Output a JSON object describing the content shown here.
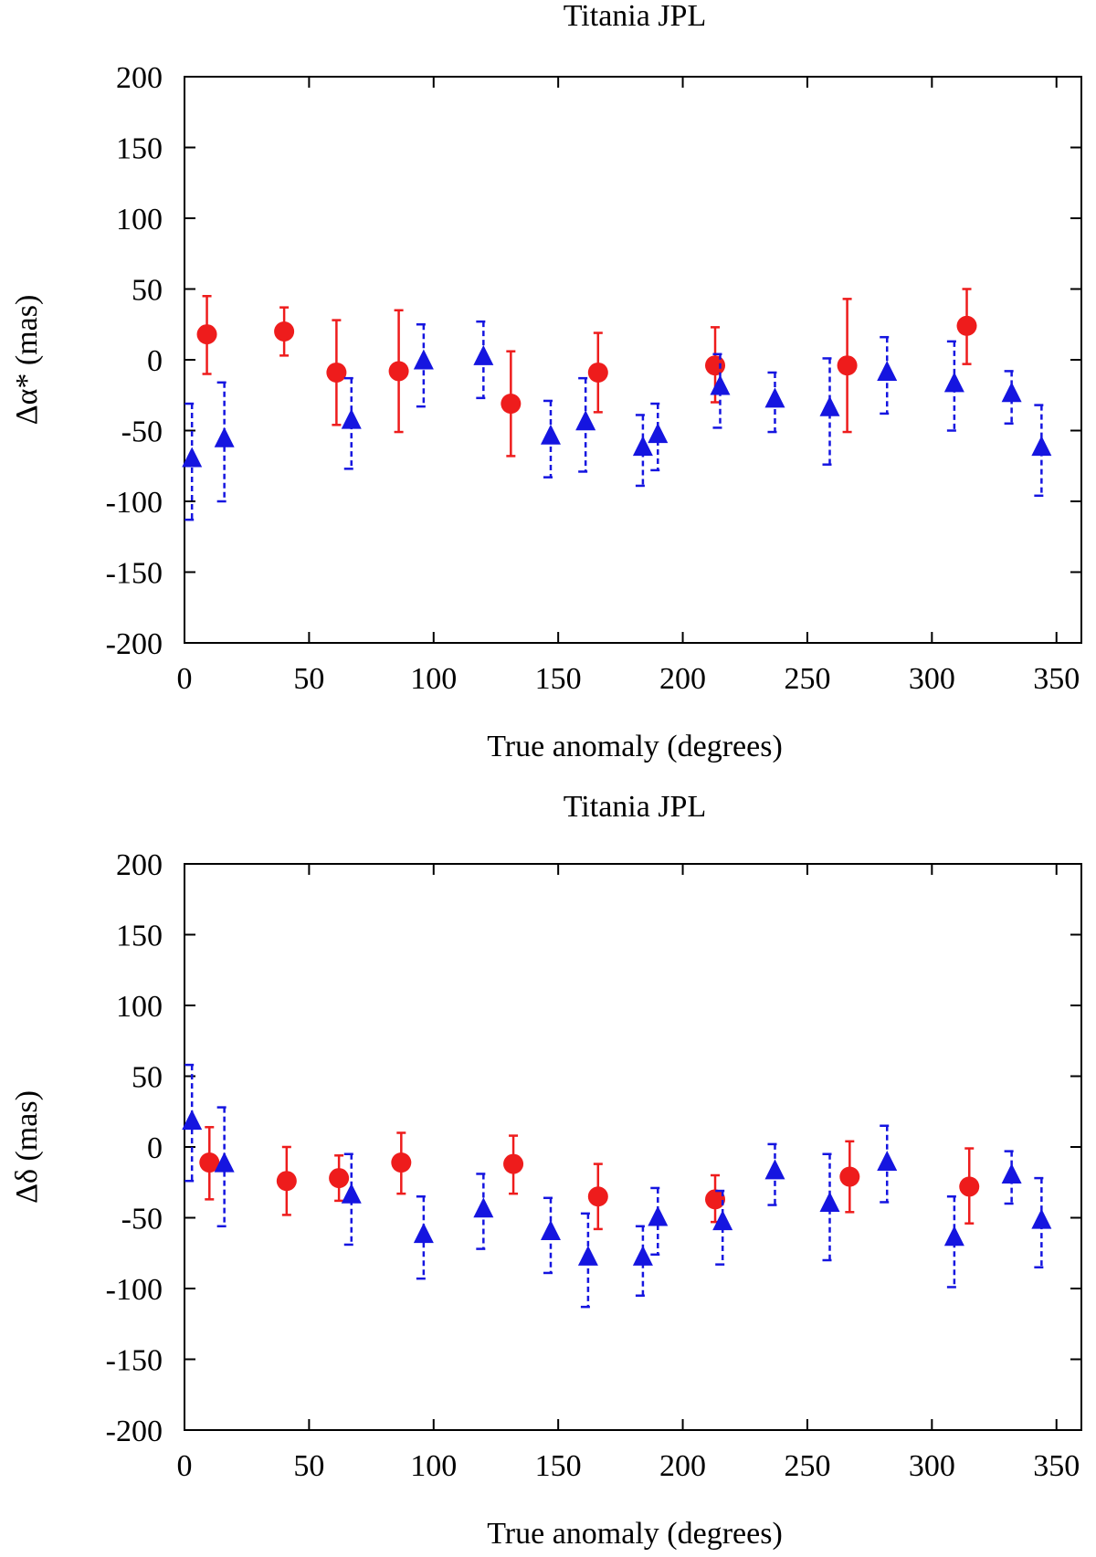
{
  "colors": {
    "red": "#ee1c1c",
    "blue": "#1515e0",
    "axis": "#000000"
  },
  "chart_data": [
    {
      "type": "scatter",
      "title": "Titania JPL",
      "xlabel": "True anomaly (degrees)",
      "ylabel": "Δα* (mas)",
      "xlim": [
        0,
        360
      ],
      "ylim": [
        -200,
        200
      ],
      "xticks": [
        "0",
        "50",
        "100",
        "150",
        "200",
        "250",
        "300",
        "350"
      ],
      "yticks": [
        "200",
        "150",
        "100",
        "50",
        "0",
        "-50",
        "-100",
        "-150",
        "-200"
      ],
      "series": [
        {
          "name": "circles",
          "marker": "circle",
          "color": "#ee1c1c",
          "points": [
            {
              "x": 9,
              "y": 18,
              "lo": -10,
              "hi": 45
            },
            {
              "x": 40,
              "y": 20,
              "lo": 3,
              "hi": 37
            },
            {
              "x": 61,
              "y": -9,
              "lo": -46,
              "hi": 28
            },
            {
              "x": 86,
              "y": -8,
              "lo": -51,
              "hi": 35
            },
            {
              "x": 131,
              "y": -31,
              "lo": -68,
              "hi": 6
            },
            {
              "x": 166,
              "y": -9,
              "lo": -37,
              "hi": 19
            },
            {
              "x": 213,
              "y": -4,
              "lo": -30,
              "hi": 23
            },
            {
              "x": 266,
              "y": -4,
              "lo": -51,
              "hi": 43
            },
            {
              "x": 314,
              "y": 24,
              "lo": -3,
              "hi": 50
            }
          ]
        },
        {
          "name": "triangles",
          "marker": "triangle",
          "color": "#1515e0",
          "points": [
            {
              "x": 3,
              "y": -70,
              "lo": -113,
              "hi": -31
            },
            {
              "x": 16,
              "y": -56,
              "lo": -100,
              "hi": -16
            },
            {
              "x": 67,
              "y": -43,
              "lo": -77,
              "hi": -13
            },
            {
              "x": 96,
              "y": -1,
              "lo": -33,
              "hi": 25
            },
            {
              "x": 120,
              "y": 2,
              "lo": -27,
              "hi": 27
            },
            {
              "x": 147,
              "y": -54,
              "lo": -83,
              "hi": -29
            },
            {
              "x": 161,
              "y": -44,
              "lo": -79,
              "hi": -13
            },
            {
              "x": 184,
              "y": -62,
              "lo": -89,
              "hi": -39
            },
            {
              "x": 190,
              "y": -53,
              "lo": -78,
              "hi": -31
            },
            {
              "x": 215,
              "y": -19,
              "lo": -48,
              "hi": 4
            },
            {
              "x": 237,
              "y": -28,
              "lo": -51,
              "hi": -9
            },
            {
              "x": 259,
              "y": -34,
              "lo": -74,
              "hi": 1
            },
            {
              "x": 282,
              "y": -9,
              "lo": -38,
              "hi": 16
            },
            {
              "x": 309,
              "y": -17,
              "lo": -50,
              "hi": 13
            },
            {
              "x": 332,
              "y": -24,
              "lo": -45,
              "hi": -8
            },
            {
              "x": 344,
              "y": -62,
              "lo": -96,
              "hi": -32
            }
          ]
        }
      ]
    },
    {
      "type": "scatter",
      "title": "Titania JPL",
      "xlabel": "True anomaly (degrees)",
      "ylabel": "Δδ (mas)",
      "xlim": [
        0,
        360
      ],
      "ylim": [
        -200,
        200
      ],
      "xticks": [
        "0",
        "50",
        "100",
        "150",
        "200",
        "250",
        "300",
        "350"
      ],
      "yticks": [
        "200",
        "150",
        "100",
        "50",
        "0",
        "-50",
        "-100",
        "-150",
        "-200"
      ],
      "series": [
        {
          "name": "circles",
          "marker": "circle",
          "color": "#ee1c1c",
          "points": [
            {
              "x": 10,
              "y": -11,
              "lo": -37,
              "hi": 14
            },
            {
              "x": 41,
              "y": -24,
              "lo": -48,
              "hi": 0
            },
            {
              "x": 62,
              "y": -22,
              "lo": -38,
              "hi": -6
            },
            {
              "x": 87,
              "y": -11,
              "lo": -33,
              "hi": 10
            },
            {
              "x": 132,
              "y": -12,
              "lo": -33,
              "hi": 8
            },
            {
              "x": 166,
              "y": -35,
              "lo": -58,
              "hi": -12
            },
            {
              "x": 213,
              "y": -37,
              "lo": -53,
              "hi": -20
            },
            {
              "x": 267,
              "y": -21,
              "lo": -46,
              "hi": 4
            },
            {
              "x": 315,
              "y": -28,
              "lo": -54,
              "hi": -1
            }
          ]
        },
        {
          "name": "triangles",
          "marker": "triangle",
          "color": "#1515e0",
          "points": [
            {
              "x": 3,
              "y": 18,
              "lo": -24,
              "hi": 58
            },
            {
              "x": 16,
              "y": -12,
              "lo": -56,
              "hi": 28
            },
            {
              "x": 67,
              "y": -34,
              "lo": -69,
              "hi": -5
            },
            {
              "x": 96,
              "y": -62,
              "lo": -93,
              "hi": -35
            },
            {
              "x": 120,
              "y": -44,
              "lo": -72,
              "hi": -19
            },
            {
              "x": 147,
              "y": -60,
              "lo": -89,
              "hi": -36
            },
            {
              "x": 162,
              "y": -78,
              "lo": -113,
              "hi": -47
            },
            {
              "x": 184,
              "y": -78,
              "lo": -105,
              "hi": -56
            },
            {
              "x": 190,
              "y": -50,
              "lo": -76,
              "hi": -29
            },
            {
              "x": 216,
              "y": -53,
              "lo": -83,
              "hi": -31
            },
            {
              "x": 237,
              "y": -17,
              "lo": -41,
              "hi": 2
            },
            {
              "x": 259,
              "y": -40,
              "lo": -80,
              "hi": -5
            },
            {
              "x": 282,
              "y": -11,
              "lo": -39,
              "hi": 15
            },
            {
              "x": 309,
              "y": -64,
              "lo": -99,
              "hi": -35
            },
            {
              "x": 332,
              "y": -20,
              "lo": -40,
              "hi": -3
            },
            {
              "x": 344,
              "y": -52,
              "lo": -85,
              "hi": -22
            }
          ]
        }
      ]
    }
  ]
}
